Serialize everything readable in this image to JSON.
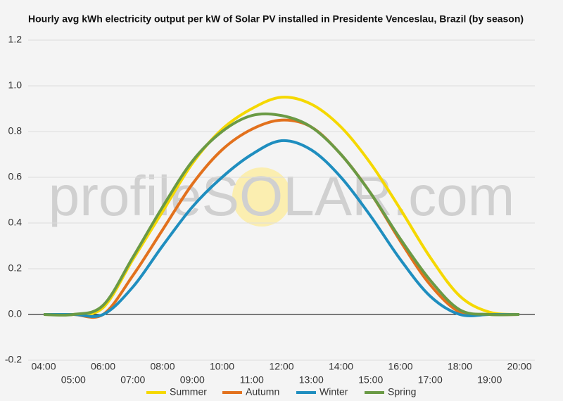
{
  "chart_data": {
    "type": "line",
    "title": "Hourly avg kWh electricity output per kW of Solar PV installed in Presidente Venceslau, Brazil (by season)",
    "watermark": "profileSOLAR.com",
    "categories": [
      "04:00",
      "05:00",
      "06:00",
      "07:00",
      "08:00",
      "09:00",
      "10:00",
      "11:00",
      "12:00",
      "13:00",
      "14:00",
      "15:00",
      "16:00",
      "17:00",
      "18:00",
      "19:00",
      "20:00"
    ],
    "series": [
      {
        "name": "Summer",
        "color": "#f5d800",
        "values": [
          0,
          0,
          0.03,
          0.24,
          0.45,
          0.66,
          0.81,
          0.9,
          0.95,
          0.92,
          0.82,
          0.66,
          0.46,
          0.25,
          0.08,
          0.01,
          0
        ]
      },
      {
        "name": "Autumn",
        "color": "#e2711d",
        "values": [
          0,
          0,
          0,
          0.17,
          0.37,
          0.57,
          0.72,
          0.81,
          0.85,
          0.82,
          0.7,
          0.53,
          0.32,
          0.13,
          0.01,
          0,
          0
        ]
      },
      {
        "name": "Winter",
        "color": "#1f8ebf",
        "values": [
          0,
          0,
          0,
          0.12,
          0.3,
          0.47,
          0.6,
          0.7,
          0.76,
          0.72,
          0.6,
          0.43,
          0.24,
          0.08,
          0,
          0,
          0
        ]
      },
      {
        "name": "Spring",
        "color": "#6a9a45",
        "values": [
          0,
          0,
          0.04,
          0.25,
          0.47,
          0.67,
          0.8,
          0.87,
          0.87,
          0.82,
          0.7,
          0.53,
          0.33,
          0.15,
          0.02,
          0,
          0
        ]
      }
    ],
    "ylim": [
      -0.2,
      1.2
    ],
    "yticks": [
      {
        "value": -0.2,
        "label": "-0.2"
      },
      {
        "value": 0,
        "label": "0.0"
      },
      0.2,
      0.4,
      0.6,
      0.8,
      {
        "value": 1,
        "label": "1.0"
      },
      1.2
    ],
    "grid": true,
    "legend": "bottom"
  }
}
